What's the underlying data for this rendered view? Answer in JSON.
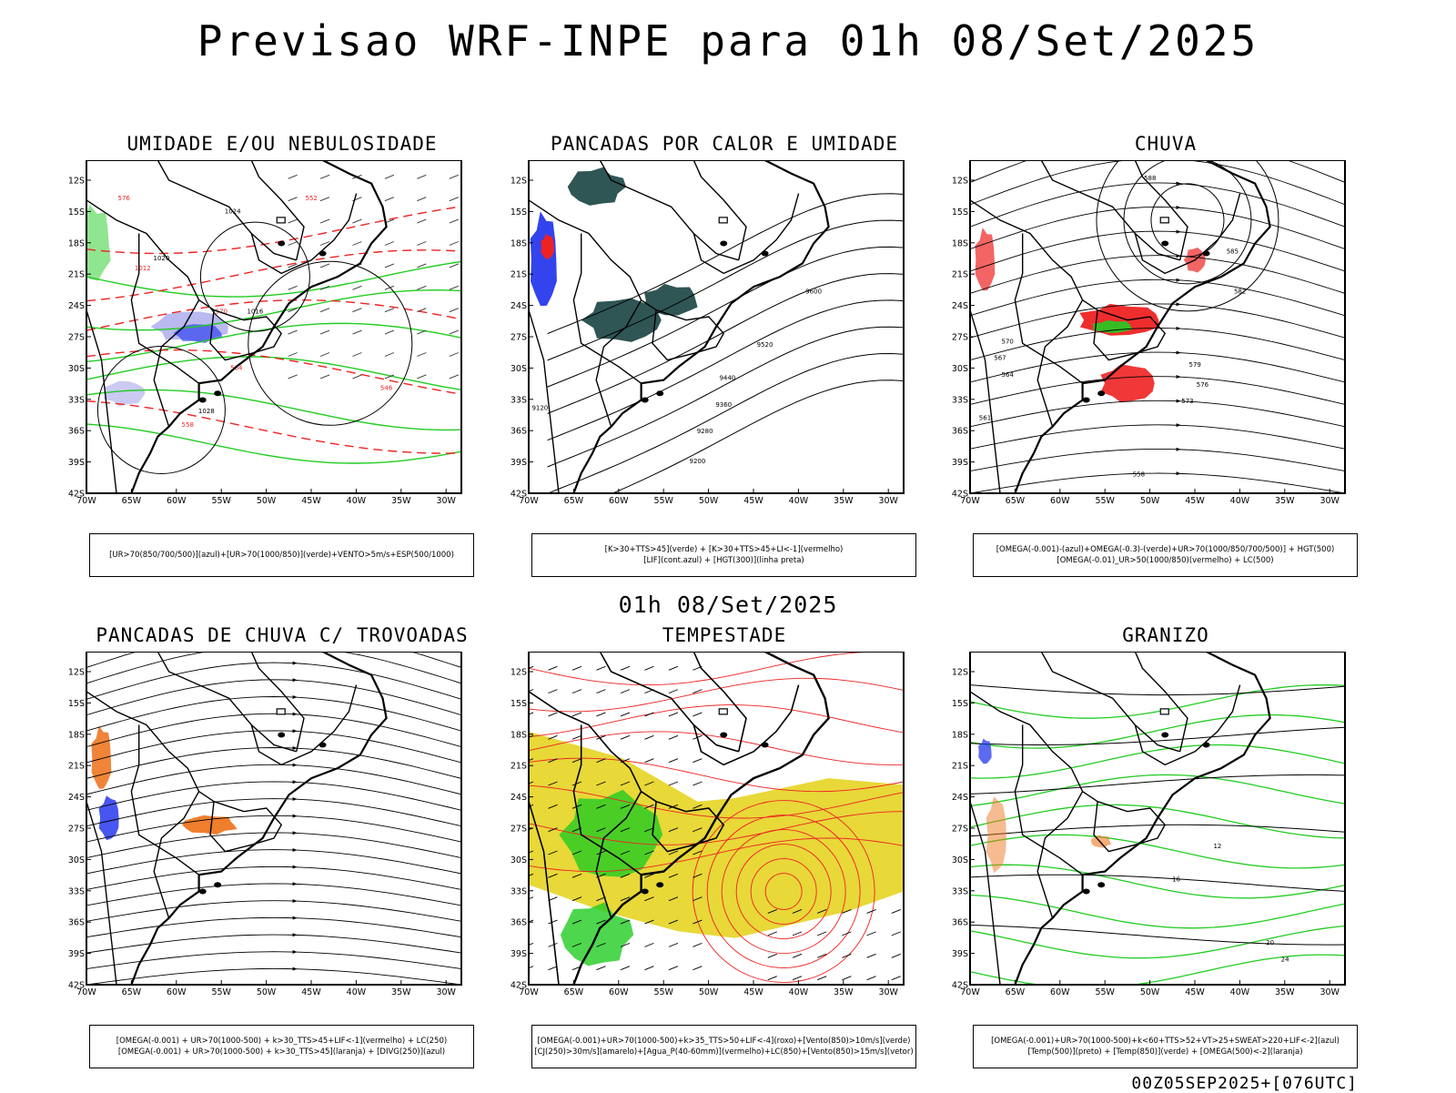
{
  "header": {
    "title": "Previsao WRF-INPE  para 01h 08/Set/2025",
    "mid_time": "01h 08/Set/2025",
    "footer": "00Z05SEP2025+[076UTC]"
  },
  "axes": {
    "lat_ticks": [
      "12S",
      "15S",
      "18S",
      "21S",
      "24S",
      "27S",
      "30S",
      "33S",
      "36S",
      "39S",
      "42S"
    ],
    "lon_ticks": [
      "70W",
      "65W",
      "60W",
      "55W",
      "50W",
      "45W",
      "40W",
      "35W",
      "30W"
    ]
  },
  "colors": {
    "green": "#22cc22",
    "red": "#ee2222",
    "blue": "#3344ee",
    "lavender": "#b3b3ee",
    "teal": "#2f5555",
    "orange": "#ee7722",
    "yellow": "#e8d838"
  },
  "panels": [
    {
      "id": "umidade",
      "title": "UMIDADE E/OU NEBULOSIDADE",
      "legend": [
        "[UR>70(850/700/500)](azul)+[UR>70(1000/850)](verde)+VENTO>5m/s+ESP(500/1000)"
      ],
      "contour_labels": [
        "1016",
        "1020",
        "1024",
        "1028",
        "1012",
        "570",
        "564",
        "558",
        "552",
        "546",
        "576"
      ]
    },
    {
      "id": "pancadas-calor",
      "title": "PANCADAS POR CALOR E UMIDADE",
      "legend": [
        "[K>30+TTS>45](verde) + [K>30+TTS>45+LI<-1](vermelho)",
        "[LIF](cont.azul) + [HGT(300)](linha preta)"
      ],
      "contour_labels": [
        "9600",
        "9520",
        "9440",
        "9360",
        "9280",
        "9200",
        "9120"
      ]
    },
    {
      "id": "chuva",
      "title": "CHUVA",
      "legend": [
        "[OMEGA(-0.001)-(azul)+OMEGA(-0.3)-(verde)+UR>70(1000/850/700/500)] + HGT(500)",
        "[OMEGA(-0.01)_UR>50(1000/850)(vermelho) + LC(500)"
      ],
      "contour_labels": [
        "588",
        "585",
        "582",
        "579",
        "576",
        "573",
        "570",
        "567",
        "564",
        "561",
        "558"
      ]
    },
    {
      "id": "pancadas-trovoadas",
      "title": "PANCADAS DE CHUVA C/ TROVOADAS",
      "legend": [
        "[OMEGA(-0.001) + UR>70(1000-500) + k>30_TTS>45+LIF<-1](vermelho) + LC(250)",
        "[OMEGA(-0.001) + UR>70(1000-500) + k>30_TTS>45](laranja) + [DIVG(250)](azul)"
      ],
      "contour_labels": []
    },
    {
      "id": "tempestade",
      "title": "TEMPESTADE",
      "legend": [
        "[OMEGA(-0.001)+UR>70(1000-500)+k>35_TTS>50+LIF<-4](roxo)+[Vento(850)>10m/s](verde)",
        "[CJ(250)>30m/s](amarelo)+[Agua_P(40-60mm)](vermelho)+LC(850)+[Vento(850)>15m/s](vetor)"
      ],
      "contour_labels": []
    },
    {
      "id": "granizo",
      "title": "GRANIZO",
      "legend": [
        "[OMEGA(-0.001)+UR>70(1000-500)+k<60+TTS>52+VT>25+SWEAT>220+LIF<-2](azul)",
        "[Temp(500)](preto) + [Temp(850)](verde) + [OMEGA(500)<-2](laranja)"
      ],
      "contour_labels": [
        "12",
        "16",
        "20",
        "24"
      ]
    }
  ]
}
